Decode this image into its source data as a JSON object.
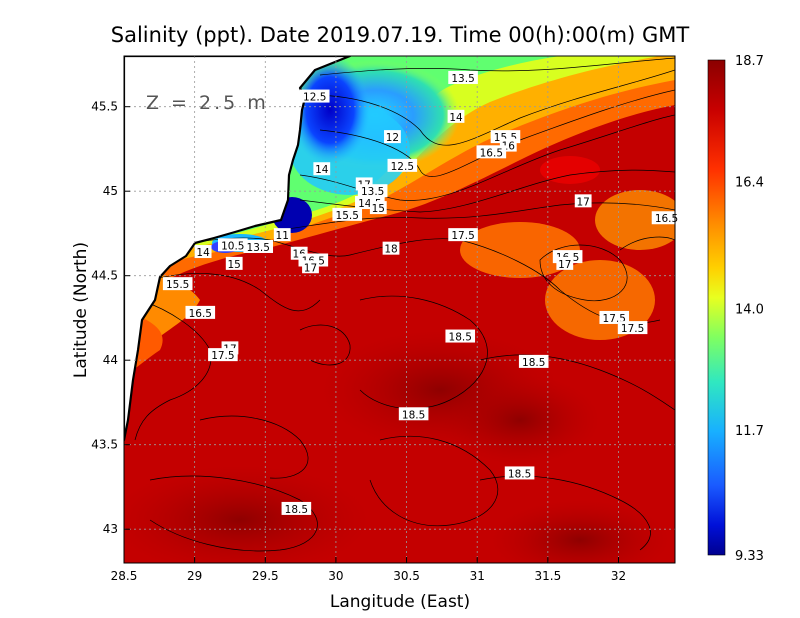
{
  "chart_data": {
    "type": "heatmap",
    "title": "Salinity (ppt). Date 2019.07.19. Time 00(h):00(m) GMT",
    "annotation": "Z = 2.5 m",
    "xlabel": "Langitude (East)",
    "ylabel": "Latitude (North)",
    "xlim": [
      28.5,
      32.4
    ],
    "ylim": [
      42.8,
      45.8
    ],
    "xticks": [
      "28.5",
      "29",
      "29.5",
      "30",
      "30.5",
      "31",
      "31.5",
      "32"
    ],
    "xtick_values": [
      28.5,
      29,
      29.5,
      30,
      30.5,
      31,
      31.5,
      32
    ],
    "yticks": [
      "43",
      "43.5",
      "44",
      "44.5",
      "45",
      "45.5"
    ],
    "ytick_values": [
      43,
      43.5,
      44,
      44.5,
      45,
      45.5
    ],
    "grid": true,
    "colorbar": {
      "min": 9.33,
      "max": 18.7,
      "labels": [
        "18.7",
        "16.4",
        "14.0",
        "11.7",
        "9.33"
      ],
      "label_values": [
        18.7,
        16.4,
        14.0,
        11.7,
        9.33
      ],
      "colors": [
        "#8b0000",
        "#d40000",
        "#ff3a00",
        "#ff8c00",
        "#ffd200",
        "#e8ff1a",
        "#7dff5a",
        "#2fe0b0",
        "#1fbfff",
        "#1a6fff",
        "#0a1fe0",
        "#000090"
      ]
    },
    "contour_labels": [
      {
        "text": "13.5",
        "lon": 30.9,
        "lat": 45.67
      },
      {
        "text": "12.5",
        "lon": 29.85,
        "lat": 45.56
      },
      {
        "text": "14",
        "lon": 30.85,
        "lat": 45.44
      },
      {
        "text": "12",
        "lon": 30.4,
        "lat": 45.32
      },
      {
        "text": "15.5",
        "lon": 31.2,
        "lat": 45.32
      },
      {
        "text": "16",
        "lon": 31.22,
        "lat": 45.27
      },
      {
        "text": "16.5",
        "lon": 31.1,
        "lat": 45.23
      },
      {
        "text": "12.5",
        "lon": 30.47,
        "lat": 45.15
      },
      {
        "text": "14",
        "lon": 29.9,
        "lat": 45.13
      },
      {
        "text": "17",
        "lon": 30.2,
        "lat": 45.04
      },
      {
        "text": "13.5",
        "lon": 30.26,
        "lat": 45.0
      },
      {
        "text": "14.5",
        "lon": 30.24,
        "lat": 44.93
      },
      {
        "text": "15",
        "lon": 30.3,
        "lat": 44.9
      },
      {
        "text": "15.5",
        "lon": 30.08,
        "lat": 44.86
      },
      {
        "text": "17",
        "lon": 31.75,
        "lat": 44.94
      },
      {
        "text": "16.5",
        "lon": 32.34,
        "lat": 44.84
      },
      {
        "text": "11",
        "lon": 29.62,
        "lat": 44.74
      },
      {
        "text": "13.5",
        "lon": 29.45,
        "lat": 44.67
      },
      {
        "text": "10.5",
        "lon": 29.27,
        "lat": 44.68
      },
      {
        "text": "14",
        "lon": 29.06,
        "lat": 44.64
      },
      {
        "text": "18",
        "lon": 30.39,
        "lat": 44.66
      },
      {
        "text": "17.5",
        "lon": 30.9,
        "lat": 44.74
      },
      {
        "text": "16",
        "lon": 29.74,
        "lat": 44.63
      },
      {
        "text": "16.5",
        "lon": 29.84,
        "lat": 44.59
      },
      {
        "text": "17",
        "lon": 29.82,
        "lat": 44.55
      },
      {
        "text": "15",
        "lon": 29.28,
        "lat": 44.57
      },
      {
        "text": "16.5",
        "lon": 31.64,
        "lat": 44.61
      },
      {
        "text": "17",
        "lon": 31.62,
        "lat": 44.57
      },
      {
        "text": "15.5",
        "lon": 28.88,
        "lat": 44.45
      },
      {
        "text": "16.5",
        "lon": 29.04,
        "lat": 44.28
      },
      {
        "text": "17.5",
        "lon": 31.97,
        "lat": 44.25
      },
      {
        "text": "17.5",
        "lon": 32.1,
        "lat": 44.19
      },
      {
        "text": "18.5",
        "lon": 30.88,
        "lat": 44.14
      },
      {
        "text": "17",
        "lon": 29.25,
        "lat": 44.07
      },
      {
        "text": "17.5",
        "lon": 29.2,
        "lat": 44.03
      },
      {
        "text": "18.5",
        "lon": 31.4,
        "lat": 43.99
      },
      {
        "text": "18.5",
        "lon": 30.55,
        "lat": 43.68
      },
      {
        "text": "18.5",
        "lon": 31.3,
        "lat": 43.33
      },
      {
        "text": "18.5",
        "lon": 29.72,
        "lat": 43.12
      }
    ]
  }
}
